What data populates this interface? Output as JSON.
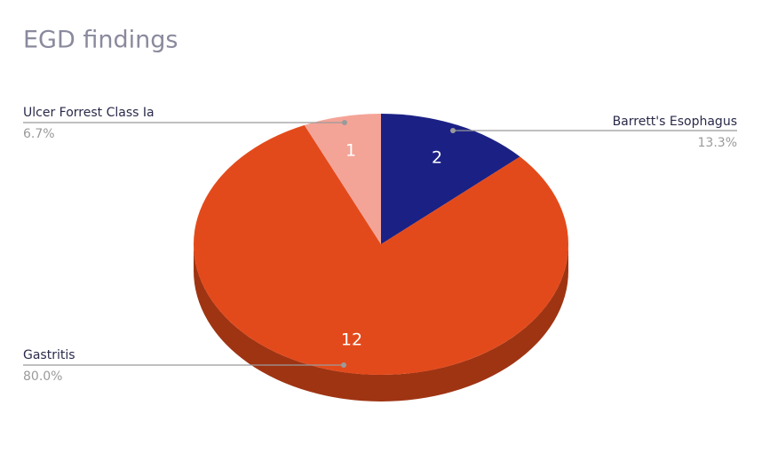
{
  "chart_data": {
    "type": "pie",
    "title": "EGD findings",
    "categories": [
      "Barrett's Esophagus",
      "Gastritis",
      "Ulcer Forrest Class Ia"
    ],
    "values": [
      2,
      12,
      1
    ],
    "percentages": [
      13.3,
      80.0,
      6.7
    ],
    "percentage_labels": [
      "13.3%",
      "80.0%",
      "6.7%"
    ],
    "colors": [
      "#1b2184",
      "#e34a1b",
      "#f4a497"
    ]
  }
}
